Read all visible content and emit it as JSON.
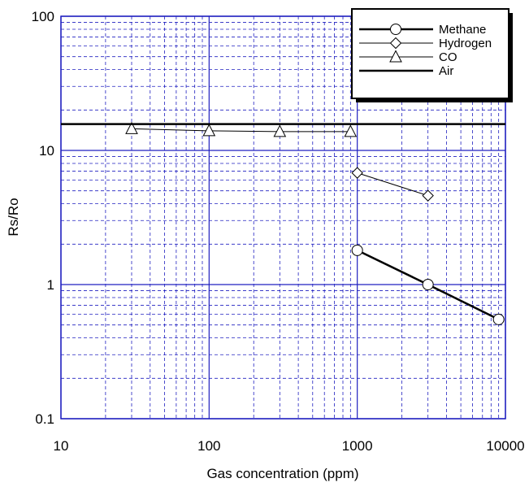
{
  "chart_data": {
    "type": "line",
    "title": "",
    "xlabel": "Gas concentration (ppm)",
    "ylabel": "Rs/Ro",
    "xscale": "log",
    "yscale": "log",
    "xlim": [
      10,
      10000
    ],
    "ylim": [
      0.1,
      100
    ],
    "x_ticks": [
      10,
      100,
      1000,
      10000
    ],
    "x_tick_labels": [
      "10",
      "100",
      "1000",
      "10000"
    ],
    "y_ticks": [
      0.1,
      1,
      10,
      100
    ],
    "y_tick_labels": [
      "0.1",
      "1",
      "10",
      "100"
    ],
    "grid": true,
    "legend_position": "top-right",
    "series": [
      {
        "name": "Methane",
        "marker": "circle",
        "line_weight": "thick",
        "x": [
          1000,
          3000,
          9000
        ],
        "y": [
          1.8,
          1.0,
          0.55
        ]
      },
      {
        "name": "Hydrogen",
        "marker": "diamond",
        "line_weight": "thin",
        "x": [
          1000,
          3000
        ],
        "y": [
          6.8,
          4.6
        ]
      },
      {
        "name": "CO",
        "marker": "triangle",
        "line_weight": "thin",
        "x": [
          30,
          100,
          300,
          900
        ],
        "y": [
          14.5,
          14.0,
          13.8,
          13.8
        ]
      },
      {
        "name": "Air",
        "marker": "none",
        "line_weight": "thick",
        "x": [
          10,
          10000
        ],
        "y": [
          15.7,
          15.7
        ]
      }
    ]
  },
  "colors": {
    "grid_major": "#2020c0",
    "grid_minor": "#2020c0",
    "series_line": "#000000",
    "background": "#ffffff"
  }
}
